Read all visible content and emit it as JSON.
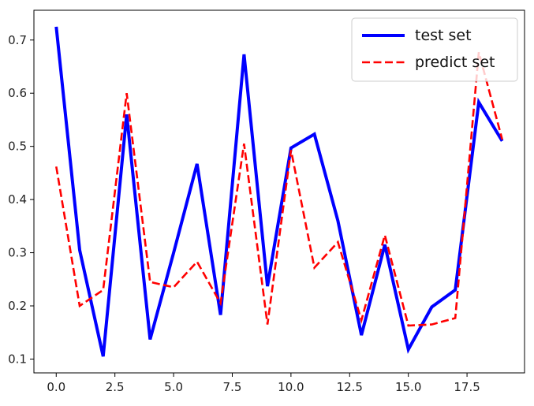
{
  "chart_data": {
    "type": "line",
    "x": [
      0,
      1,
      2,
      3,
      4,
      5,
      6,
      7,
      8,
      9,
      10,
      11,
      12,
      13,
      14,
      15,
      16,
      17,
      18,
      19
    ],
    "series": [
      {
        "name": "test set",
        "color": "#0000ff",
        "style": "solid",
        "values": [
          0.725,
          0.305,
          0.105,
          0.56,
          0.137,
          0.3,
          0.467,
          0.183,
          0.673,
          0.237,
          0.497,
          0.523,
          0.36,
          0.145,
          0.315,
          0.118,
          0.198,
          0.23,
          0.583,
          0.51
        ]
      },
      {
        "name": "predict set",
        "color": "#ff0000",
        "style": "dashed",
        "values": [
          0.462,
          0.2,
          0.23,
          0.6,
          0.245,
          0.235,
          0.283,
          0.205,
          0.505,
          0.165,
          0.493,
          0.272,
          0.32,
          0.173,
          0.333,
          0.163,
          0.165,
          0.177,
          0.677,
          0.513
        ]
      }
    ],
    "x_ticks": [
      0.0,
      2.5,
      5.0,
      7.5,
      10.0,
      12.5,
      15.0,
      17.5
    ],
    "x_tick_labels": [
      "0.0",
      "2.5",
      "5.0",
      "7.5",
      "10.0",
      "12.5",
      "15.0",
      "17.5"
    ],
    "y_ticks": [
      0.1,
      0.2,
      0.3,
      0.4,
      0.5,
      0.6,
      0.7
    ],
    "y_tick_labels": [
      "0.1",
      "0.2",
      "0.3",
      "0.4",
      "0.5",
      "0.6",
      "0.7"
    ],
    "xlim": [
      -0.95,
      19.95
    ],
    "ylim": [
      0.074,
      0.756
    ],
    "title": "",
    "xlabel": "",
    "ylabel": "",
    "grid": false,
    "legend_position": "top-right"
  }
}
